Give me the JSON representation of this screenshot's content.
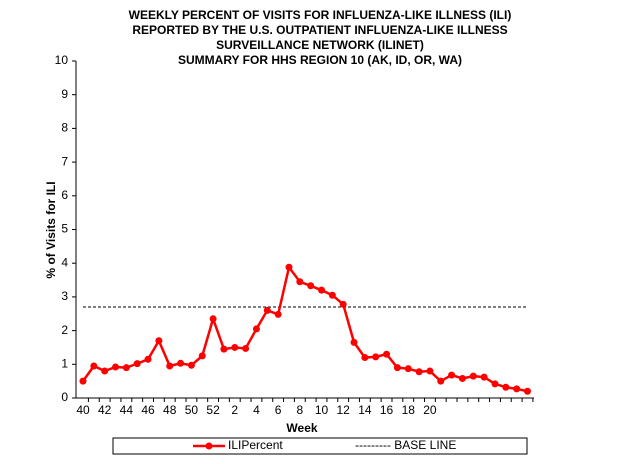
{
  "chart_data": {
    "type": "line",
    "title": [
      "WEEKLY PERCENT  OF VISITS FOR INFLUENZA-LIKE ILLNESS (ILI)",
      "REPORTED  BY THE U.S. OUTPATIENT  INFLUENZA-LIKE  ILLNESS",
      "SURVEILLANCE NETWORK (ILINET)",
      "SUMMARY FOR HHS REGION 10 (AK, ID, OR, WA)"
    ],
    "xlabel": "Week",
    "ylabel": "% of Visits for ILI",
    "categories": [
      "40",
      null,
      "42",
      null,
      "44",
      null,
      "46",
      null,
      "48",
      null,
      "50",
      null,
      "52",
      null,
      "2",
      null,
      "4",
      null,
      "6",
      null,
      "8",
      null,
      "10",
      null,
      "12",
      null,
      "14",
      null,
      "16",
      null,
      "18",
      null,
      "20",
      null,
      null,
      null,
      null,
      null,
      null,
      null,
      null,
      null
    ],
    "series": [
      {
        "name": "ILIPercent",
        "color": "#ff0000",
        "values": [
          0.5,
          0.95,
          0.8,
          0.92,
          0.9,
          1.02,
          1.15,
          1.7,
          0.95,
          1.03,
          0.97,
          1.25,
          2.35,
          1.45,
          1.5,
          1.47,
          2.05,
          2.6,
          2.48,
          3.88,
          3.45,
          3.33,
          3.2,
          3.05,
          2.78,
          1.65,
          1.2,
          1.22,
          1.3,
          0.9,
          0.87,
          0.78,
          0.8,
          0.5,
          0.68,
          0.58,
          0.65,
          0.62,
          0.42,
          0.32,
          0.27,
          0.2
        ]
      }
    ],
    "baseline": {
      "name": "--------- BASE LINE",
      "value": 2.7,
      "color": "#000000"
    },
    "ylim": [
      0,
      10
    ],
    "yticks": [
      0,
      1,
      2,
      3,
      4,
      5,
      6,
      7,
      8,
      9,
      10
    ],
    "legend": "bottom"
  }
}
